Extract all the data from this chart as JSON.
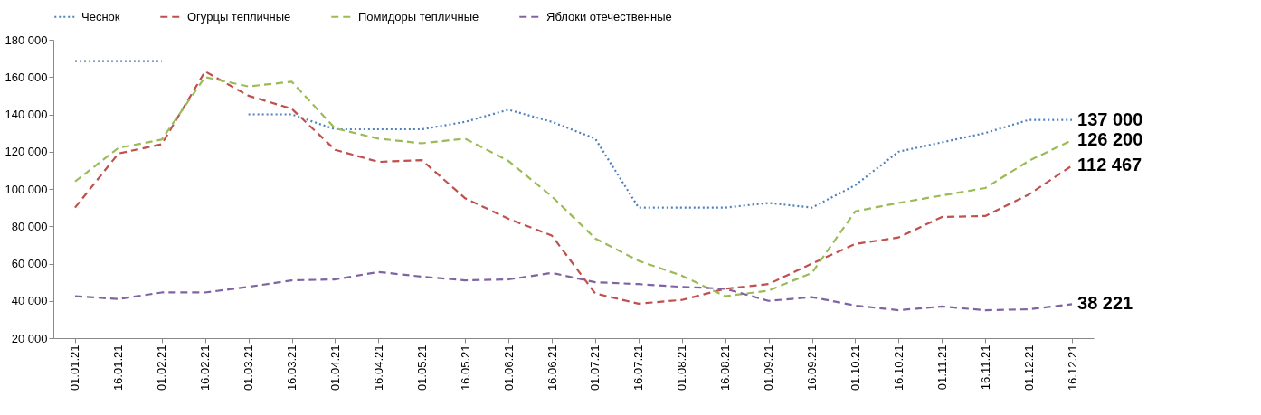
{
  "chart_data": {
    "type": "line",
    "categories": [
      "01.01.21",
      "16.01.21",
      "01.02.21",
      "16.02.21",
      "01.03.21",
      "16.03.21",
      "01.04.21",
      "16.04.21",
      "01.05.21",
      "16.05.21",
      "01.06.21",
      "16.06.21",
      "01.07.21",
      "16.07.21",
      "01.08.21",
      "16.08.21",
      "01.09.21",
      "16.09.21",
      "01.10.21",
      "16.10.21",
      "01.11.21",
      "16.11.21",
      "01.12.21",
      "16.12.21"
    ],
    "series": [
      {
        "name": "Чеснок",
        "color": "#4f81bd",
        "line_style": "dotted",
        "values": [
          168500,
          168500,
          168500,
          null,
          140000,
          140000,
          132000,
          132000,
          132000,
          136000,
          142500,
          136000,
          127000,
          90000,
          90000,
          90000,
          92500,
          90000,
          102000,
          120000,
          125000,
          130000,
          137000,
          137000
        ],
        "value_labels": [
          null,
          null,
          null,
          null,
          null,
          null,
          null,
          null,
          null,
          null,
          null,
          null,
          null,
          null,
          null,
          null,
          null,
          null,
          null,
          null,
          null,
          null,
          null,
          "137 000"
        ]
      },
      {
        "name": "Огурцы тепличные",
        "color": "#c0504d",
        "line_style": "dashed",
        "values": [
          90000,
          119000,
          124000,
          163000,
          150000,
          143000,
          121000,
          114500,
          115500,
          95000,
          84000,
          75000,
          44000,
          38500,
          40500,
          46500,
          49000,
          60000,
          70500,
          74000,
          85000,
          85500,
          97000,
          112467
        ],
        "value_labels": [
          null,
          null,
          null,
          null,
          null,
          null,
          null,
          null,
          null,
          null,
          null,
          null,
          null,
          null,
          null,
          null,
          null,
          null,
          null,
          null,
          null,
          null,
          null,
          "112 467"
        ]
      },
      {
        "name": "Помидоры тепличные",
        "color": "#9bbb59",
        "line_style": "dashed",
        "values": [
          104000,
          122000,
          126500,
          160000,
          155000,
          157500,
          132500,
          127000,
          124500,
          127000,
          115000,
          96000,
          73500,
          61500,
          53500,
          42500,
          45500,
          55000,
          88000,
          92500,
          96500,
          100500,
          115000,
          126200
        ],
        "value_labels": [
          null,
          null,
          null,
          null,
          null,
          null,
          null,
          null,
          null,
          null,
          null,
          null,
          null,
          null,
          null,
          null,
          null,
          null,
          null,
          null,
          null,
          null,
          null,
          "126 200"
        ]
      },
      {
        "name": "Яблоки отечественные",
        "color": "#8064a2",
        "line_style": "dashed",
        "values": [
          42500,
          41000,
          44500,
          44500,
          47500,
          51000,
          51500,
          55500,
          53000,
          51000,
          51500,
          55000,
          50000,
          49000,
          47500,
          46500,
          40000,
          42000,
          37500,
          35000,
          37000,
          35000,
          35500,
          38221
        ],
        "value_labels": [
          null,
          null,
          null,
          null,
          null,
          null,
          null,
          null,
          null,
          null,
          null,
          null,
          null,
          null,
          null,
          null,
          null,
          null,
          null,
          null,
          null,
          null,
          null,
          "38 221"
        ]
      }
    ],
    "ylim": [
      20000,
      180000
    ],
    "yticks": [
      20000,
      40000,
      60000,
      80000,
      100000,
      120000,
      140000,
      160000,
      180000
    ],
    "grid": false,
    "legend": "top",
    "marker": "none"
  }
}
